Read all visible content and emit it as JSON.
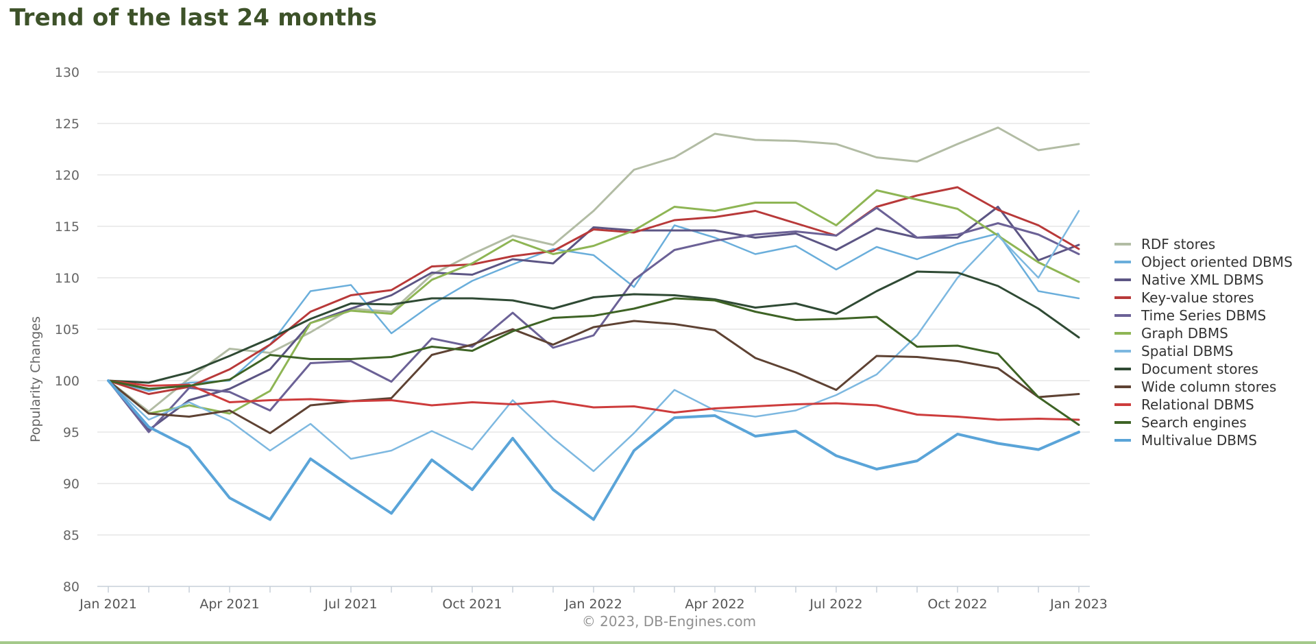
{
  "title": "Trend of the last 24 months",
  "credit": "© 2023, DB-Engines.com",
  "colors": {
    "title": "#3d5229",
    "footer_rule": "#a4c98a",
    "grid": "#d8d8d8"
  },
  "chart_data": {
    "type": "line",
    "ylabel": "Popularity Changes",
    "xlabel": "",
    "ylim": [
      80,
      130
    ],
    "yticks": [
      80,
      85,
      90,
      95,
      100,
      105,
      110,
      115,
      120,
      125,
      130
    ],
    "x": [
      "2021-01",
      "2021-02",
      "2021-03",
      "2021-04",
      "2021-05",
      "2021-06",
      "2021-07",
      "2021-08",
      "2021-09",
      "2021-10",
      "2021-11",
      "2021-12",
      "2022-01",
      "2022-02",
      "2022-03",
      "2022-04",
      "2022-05",
      "2022-06",
      "2022-07",
      "2022-08",
      "2022-09",
      "2022-10",
      "2022-11",
      "2022-12",
      "2023-01"
    ],
    "xtick_labels": [
      "Jan 2021",
      "",
      "",
      "Apr 2021",
      "",
      "",
      "Jul 2021",
      "",
      "",
      "Oct 2021",
      "",
      "",
      "Jan 2022",
      "",
      "",
      "Apr 2022",
      "",
      "",
      "Jul 2022",
      "",
      "",
      "Oct 2022",
      "",
      "",
      "Jan 2023"
    ],
    "grid": true,
    "legend_position": "right",
    "series": [
      {
        "name": "RDF stores",
        "color": "#b2bca4",
        "width": 3,
        "values": [
          100,
          97.0,
          100.2,
          103.1,
          102.7,
          104.7,
          107.0,
          106.7,
          110.3,
          112.3,
          114.1,
          113.2,
          116.5,
          120.5,
          121.7,
          124.0,
          123.4,
          123.3,
          123.0,
          121.7,
          121.3,
          123.0,
          124.6,
          122.4,
          123.0
        ]
      },
      {
        "name": "Object oriented DBMS",
        "color": "#6aaedb",
        "width": 2.5,
        "values": [
          100,
          99.0,
          99.8,
          100.0,
          103.5,
          108.7,
          109.3,
          104.6,
          107.4,
          109.7,
          111.3,
          112.8,
          112.2,
          109.1,
          115.1,
          113.9,
          112.3,
          113.1,
          110.8,
          113.0,
          111.8,
          113.3,
          114.3,
          108.7,
          108.0
        ]
      },
      {
        "name": "Native XML DBMS",
        "color": "#5c5584",
        "width": 3,
        "values": [
          100,
          95.2,
          98.1,
          99.2,
          101.1,
          105.6,
          107.0,
          108.3,
          110.5,
          110.3,
          111.8,
          111.4,
          114.9,
          114.6,
          114.6,
          114.6,
          113.9,
          114.3,
          112.7,
          114.8,
          113.9,
          113.9,
          116.9,
          111.7,
          113.2
        ]
      },
      {
        "name": "Key-value stores",
        "color": "#b83939",
        "width": 3,
        "values": [
          100,
          98.7,
          99.4,
          101.1,
          103.5,
          106.7,
          108.3,
          108.8,
          111.1,
          111.3,
          112.1,
          112.6,
          114.7,
          114.4,
          115.6,
          115.9,
          116.5,
          115.3,
          114.1,
          116.9,
          118.0,
          118.8,
          116.6,
          115.1,
          112.8
        ]
      },
      {
        "name": "Time Series DBMS",
        "color": "#6b6196",
        "width": 3,
        "values": [
          100,
          95.0,
          99.3,
          98.9,
          97.1,
          101.7,
          101.9,
          99.9,
          104.1,
          103.3,
          106.6,
          103.2,
          104.4,
          109.8,
          112.7,
          113.6,
          114.2,
          114.5,
          114.1,
          116.8,
          113.9,
          114.2,
          115.3,
          114.2,
          112.3
        ]
      },
      {
        "name": "Graph DBMS",
        "color": "#8eb554",
        "width": 3,
        "values": [
          100,
          96.8,
          97.6,
          96.8,
          99.0,
          105.6,
          106.8,
          106.5,
          109.8,
          111.4,
          113.7,
          112.3,
          113.1,
          114.6,
          116.9,
          116.5,
          117.3,
          117.3,
          115.1,
          118.5,
          117.6,
          116.7,
          114.1,
          111.5,
          109.6
        ]
      },
      {
        "name": "Spatial DBMS",
        "color": "#7db8e0",
        "width": 2.5,
        "values": [
          100,
          96.2,
          97.9,
          96.1,
          93.2,
          95.8,
          92.4,
          93.2,
          95.1,
          93.3,
          98.1,
          94.4,
          91.2,
          94.9,
          99.1,
          97.1,
          96.5,
          97.1,
          98.6,
          100.6,
          104.4,
          110.0,
          114.1,
          110.0,
          116.5
        ]
      },
      {
        "name": "Document stores",
        "color": "#2f4a34",
        "width": 3,
        "values": [
          100,
          99.8,
          100.8,
          102.4,
          104.1,
          106.0,
          107.5,
          107.4,
          108.0,
          108.0,
          107.8,
          107.0,
          108.1,
          108.4,
          108.3,
          107.9,
          107.1,
          107.5,
          106.5,
          108.7,
          110.6,
          110.5,
          109.2,
          107.0,
          104.2
        ]
      },
      {
        "name": "Wide column stores",
        "color": "#5e4233",
        "width": 3,
        "values": [
          100,
          96.8,
          96.5,
          97.1,
          94.9,
          97.6,
          98.0,
          98.3,
          102.5,
          103.5,
          105.0,
          103.5,
          105.2,
          105.8,
          105.5,
          104.9,
          102.2,
          100.8,
          99.1,
          102.4,
          102.3,
          101.9,
          101.2,
          98.4,
          98.7
        ]
      },
      {
        "name": "Relational DBMS",
        "color": "#cd3c3c",
        "width": 3,
        "values": [
          100,
          99.5,
          99.6,
          97.9,
          98.1,
          98.2,
          98.0,
          98.1,
          97.6,
          97.9,
          97.7,
          98.0,
          97.4,
          97.5,
          96.9,
          97.3,
          97.5,
          97.7,
          97.8,
          97.6,
          96.7,
          96.5,
          96.2,
          96.3,
          96.2
        ]
      },
      {
        "name": "Search engines",
        "color": "#3e6325",
        "width": 3,
        "values": [
          100,
          99.2,
          99.5,
          100.1,
          102.5,
          102.1,
          102.1,
          102.3,
          103.3,
          102.9,
          104.8,
          106.1,
          106.3,
          107.0,
          108.0,
          107.8,
          106.7,
          105.9,
          106.0,
          106.2,
          103.3,
          103.4,
          102.6,
          98.4,
          95.7
        ]
      },
      {
        "name": "Multivalue DBMS",
        "color": "#5aa4d8",
        "width": 4,
        "values": [
          100,
          95.5,
          93.5,
          88.6,
          86.5,
          92.4,
          89.7,
          87.1,
          92.3,
          89.4,
          94.4,
          89.4,
          86.5,
          93.2,
          96.4,
          96.6,
          94.6,
          95.1,
          92.7,
          91.4,
          92.2,
          94.8,
          93.9,
          93.3,
          95.0
        ]
      }
    ]
  }
}
